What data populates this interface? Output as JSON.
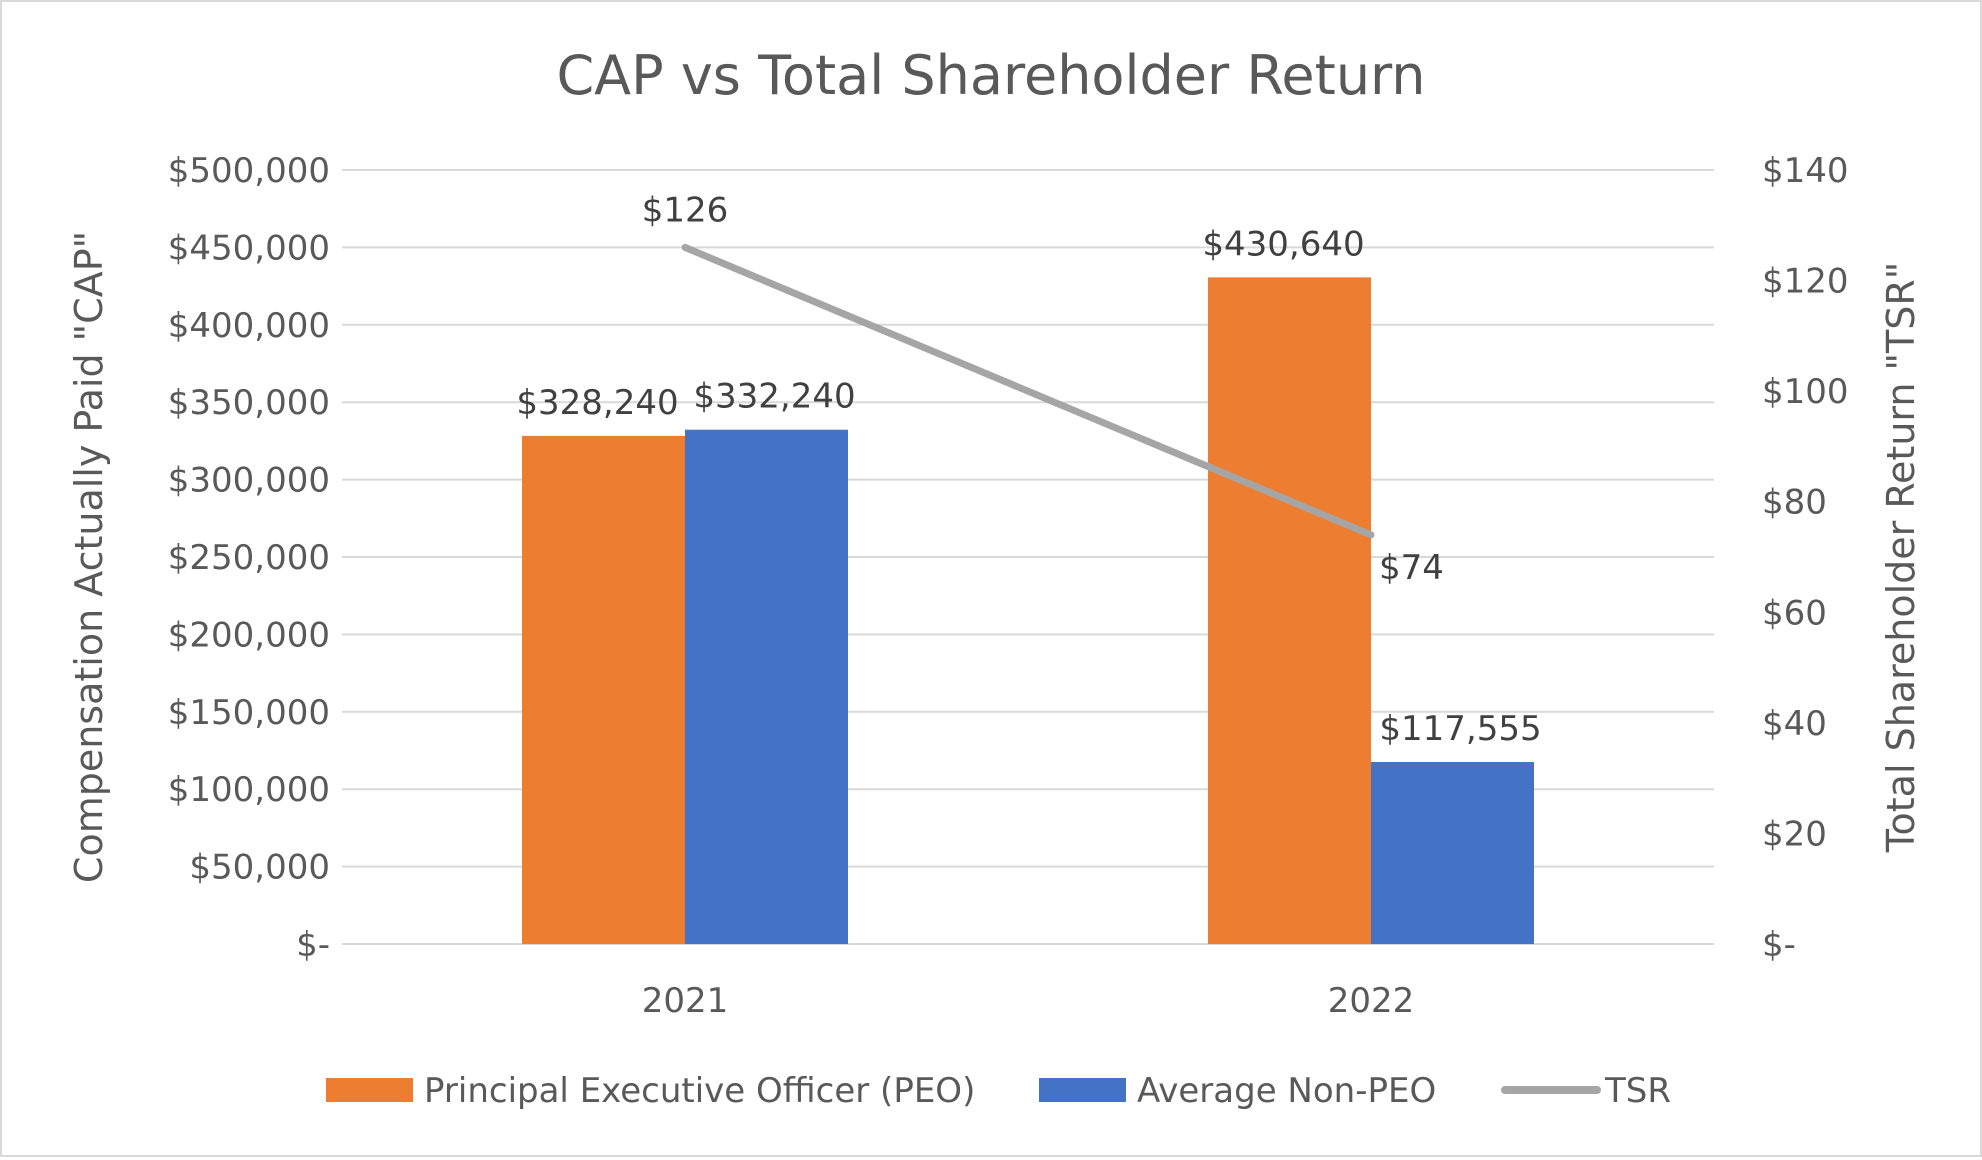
{
  "chart_data": {
    "type": "bar",
    "title": "CAP vs Total Shareholder Return",
    "categories": [
      "2021",
      "2022"
    ],
    "series": [
      {
        "name": "Principal Executive Officer (PEO)",
        "kind": "bar",
        "axis": "left",
        "color": "#ED7D31",
        "values": [
          328240,
          430640
        ],
        "labels": [
          "$328,240",
          "$430,640"
        ]
      },
      {
        "name": "Average Non-PEO",
        "kind": "bar",
        "axis": "left",
        "color": "#4472C4",
        "values": [
          332240,
          117555
        ],
        "labels": [
          "$332,240",
          "$117,555"
        ]
      },
      {
        "name": "TSR",
        "kind": "line",
        "axis": "right",
        "color": "#A5A5A5",
        "values": [
          126,
          74
        ],
        "labels": [
          "$126",
          "$74"
        ]
      }
    ],
    "y_left": {
      "label": "Compensation Actually Paid \"CAP\"",
      "ylim": [
        0,
        500000
      ],
      "ticks": [
        0,
        50000,
        100000,
        150000,
        200000,
        250000,
        300000,
        350000,
        400000,
        450000,
        500000
      ],
      "tick_labels": [
        "$-",
        "$50,000",
        "$100,000",
        "$150,000",
        "$200,000",
        "$250,000",
        "$300,000",
        "$350,000",
        "$400,000",
        "$450,000",
        "$500,000"
      ]
    },
    "y_right": {
      "label": "Total Shareholder Return \"TSR\"",
      "ylim": [
        0,
        140
      ],
      "ticks": [
        0,
        20,
        40,
        60,
        80,
        100,
        120,
        140
      ],
      "tick_labels": [
        "$-",
        "$20",
        "$40",
        "$60",
        "$80",
        "$100",
        "$120",
        "$140"
      ]
    },
    "grid": true,
    "legend_position": "bottom"
  }
}
